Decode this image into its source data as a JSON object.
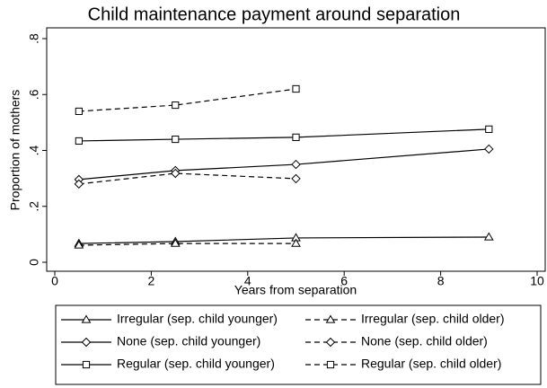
{
  "chart_data": {
    "type": "line",
    "title": "Child maintenance payment around separation",
    "x_label": "Years from separation",
    "y_label": "Proportion of mothers",
    "x": [
      0.5,
      2.5,
      5,
      9
    ],
    "xlim": [
      0,
      10
    ],
    "xticks": [
      0,
      2,
      4,
      6,
      8,
      10
    ],
    "ylim": [
      0,
      0.8
    ],
    "yticks": [
      0,
      {
        "value": 0.2,
        "label": ".2"
      },
      {
        "value": 0.4,
        "label": ".4"
      },
      {
        "value": 0.6,
        "label": ".6"
      },
      {
        "value": 0.8,
        "label": ".8"
      }
    ],
    "series": [
      {
        "name": "Irregular (sep. child younger)",
        "color": "#000000",
        "dashed": false,
        "marker": "triangle",
        "values": [
          0.067,
          0.074,
          0.087,
          0.09
        ]
      },
      {
        "name": "Irregular (sep. child older)",
        "color": "#000000",
        "dashed": true,
        "marker": "triangle",
        "values": [
          0.061,
          0.067,
          0.067,
          null
        ]
      },
      {
        "name": "None (sep. child younger)",
        "color": "#000000",
        "dashed": false,
        "marker": "diamond",
        "values": [
          0.296,
          0.328,
          0.35,
          0.405
        ]
      },
      {
        "name": "None (sep. child older)",
        "color": "#000000",
        "dashed": true,
        "marker": "diamond",
        "values": [
          0.28,
          0.318,
          0.299,
          null
        ]
      },
      {
        "name": "Regular (sep. child younger)",
        "color": "#000000",
        "dashed": false,
        "marker": "square",
        "values": [
          0.434,
          0.44,
          0.447,
          0.476
        ]
      },
      {
        "name": "Regular (sep. child older)",
        "color": "#000000",
        "dashed": true,
        "marker": "square",
        "values": [
          0.54,
          0.562,
          0.62,
          null
        ]
      }
    ]
  }
}
